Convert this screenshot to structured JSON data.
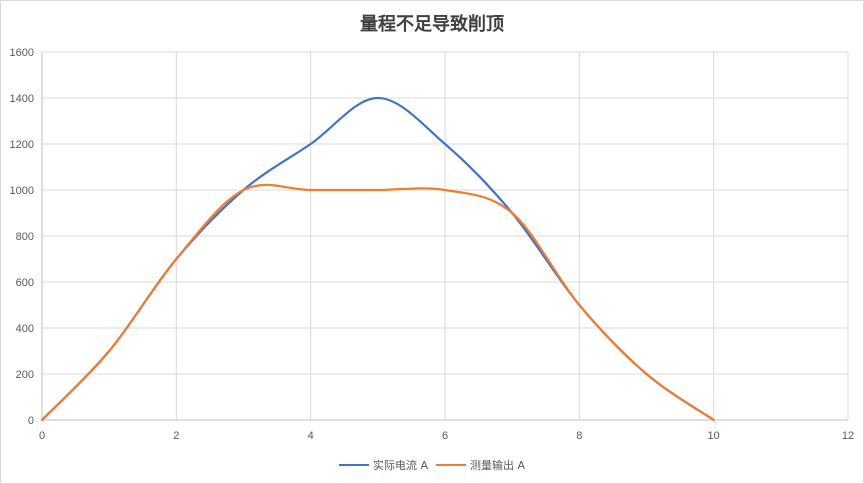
{
  "chart_data": {
    "type": "line",
    "title": "量程不足导致削顶",
    "xlim": [
      0,
      12
    ],
    "ylim": [
      0,
      1600
    ],
    "x_ticks": [
      0,
      2,
      4,
      6,
      8,
      10,
      12
    ],
    "y_ticks": [
      0,
      200,
      400,
      600,
      800,
      1000,
      1200,
      1400,
      1600
    ],
    "grid": true,
    "smooth": true,
    "legend_position": "bottom",
    "series": [
      {
        "name": "实际电流 A",
        "color": "#4472c4",
        "x": [
          0,
          1,
          2,
          3,
          4,
          5,
          6,
          7,
          8,
          9,
          10
        ],
        "y": [
          0,
          300,
          700,
          1000,
          1200,
          1400,
          1200,
          900,
          500,
          200,
          0
        ]
      },
      {
        "name": "测量输出 A",
        "color": "#ed7d31",
        "x": [
          0,
          1,
          2,
          3,
          4,
          5,
          6,
          7,
          8,
          9,
          10
        ],
        "y": [
          0,
          300,
          700,
          1000,
          1000,
          1000,
          1000,
          900,
          500,
          200,
          0
        ]
      }
    ]
  }
}
